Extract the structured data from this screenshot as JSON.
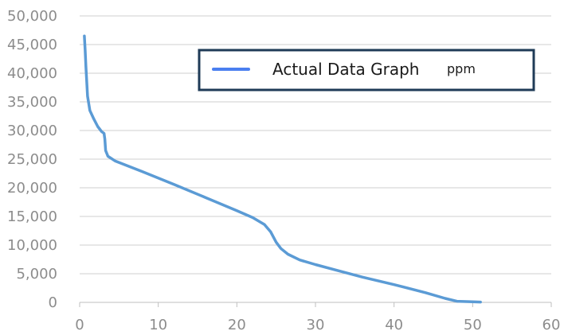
{
  "chart_data": {
    "type": "line",
    "title": "",
    "xlabel": "",
    "ylabel": "",
    "xlim": [
      0,
      60
    ],
    "ylim": [
      0,
      50000
    ],
    "x_ticks": [
      "0",
      "10",
      "20",
      "30",
      "40",
      "50",
      "60"
    ],
    "y_ticks": [
      "0",
      "5,000",
      "10,000",
      "15,000",
      "20,000",
      "25,000",
      "30,000",
      "35,000",
      "40,000",
      "45,000",
      "50,000"
    ],
    "grid": "horizontal",
    "legend_position": "top-right",
    "legend": {
      "label": "Actual Data Graph",
      "unit": "ppm"
    },
    "series": [
      {
        "name": "Actual Data Graph ppm",
        "color": "#5b9bd5",
        "points": [
          [
            0.6,
            46500
          ],
          [
            0.7,
            44000
          ],
          [
            0.8,
            41000
          ],
          [
            1.0,
            36000
          ],
          [
            1.3,
            33500
          ],
          [
            1.8,
            32000
          ],
          [
            2.3,
            30700
          ],
          [
            2.8,
            29800
          ],
          [
            3.1,
            29500
          ],
          [
            3.2,
            28500
          ],
          [
            3.3,
            26500
          ],
          [
            3.6,
            25500
          ],
          [
            4.5,
            24700
          ],
          [
            8,
            22800
          ],
          [
            12,
            20600
          ],
          [
            16,
            18300
          ],
          [
            20,
            16000
          ],
          [
            22,
            14800
          ],
          [
            23.5,
            13600
          ],
          [
            24.3,
            12300
          ],
          [
            25,
            10500
          ],
          [
            25.6,
            9400
          ],
          [
            26.5,
            8400
          ],
          [
            28,
            7400
          ],
          [
            30,
            6600
          ],
          [
            33,
            5500
          ],
          [
            36,
            4400
          ],
          [
            40,
            3100
          ],
          [
            44,
            1700
          ],
          [
            46.5,
            700
          ],
          [
            48,
            200
          ],
          [
            50,
            100
          ],
          [
            51,
            50
          ]
        ]
      }
    ]
  }
}
